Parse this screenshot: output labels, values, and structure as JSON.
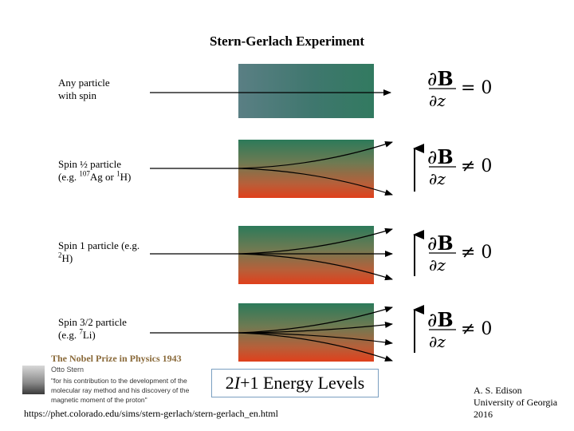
{
  "title": "Stern-Gerlach Experiment",
  "rows": [
    {
      "label_line1": "Any particle",
      "label_line2": "with spin",
      "condition": "= 0"
    },
    {
      "label_line1": "Spin ½ particle",
      "label_line2_pre": "(e.g. ",
      "label_line2_sup1": "107",
      "label_line2_mid": "Ag or ",
      "label_line2_sup2": "1",
      "label_line2_post": "H)",
      "condition": "≠ 0"
    },
    {
      "label_line1": "Spin 1 particle (e.g.",
      "label_line2_sup": "2",
      "label_line2_post": "H)",
      "condition": "≠ 0"
    },
    {
      "label_line1": "Spin 3/2 particle",
      "label_line2_pre": "(e.g. ",
      "label_line2_sup": "7",
      "label_line2_post": "Li)",
      "condition": "≠ 0"
    }
  ],
  "equation": {
    "numerator_d": "∂",
    "numerator_B": "B",
    "denominator": "∂z",
    "rhs": "0"
  },
  "nobel": {
    "title": "The Nobel Prize in Physics 1943",
    "laureate": "Otto Stern",
    "quote": "\"for his contribution to the development of the molecular ray method and his discovery of the magnetic moment of the proton\""
  },
  "energy_levels": {
    "prefix": "2",
    "var": "I",
    "suffix": "+1 Energy Levels"
  },
  "url": "https://phet.colorado.edu/sims/stern-gerlach/stern-gerlach_en.html",
  "credit": {
    "line1": "A. S. Edison",
    "line2": "University of Georgia",
    "line3": "2016"
  }
}
